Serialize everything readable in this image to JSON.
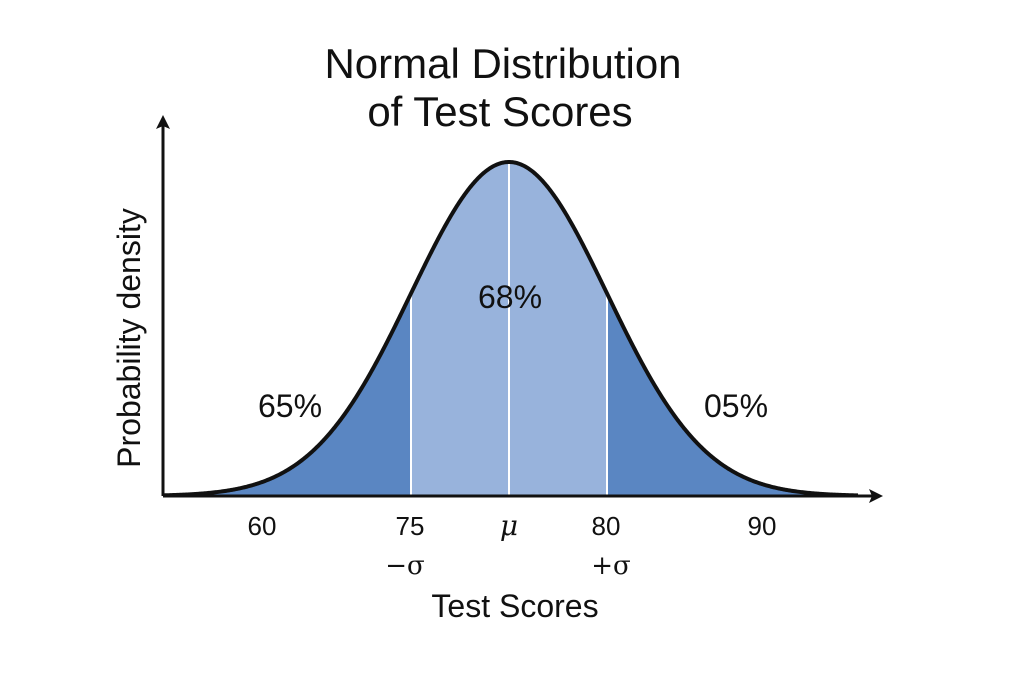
{
  "chart_data": {
    "type": "area",
    "title": [
      "Normal Distribution",
      "of Test Scores"
    ],
    "xlabel": "Test Scores",
    "ylabel": "Probability density",
    "mean_label": "μ",
    "minus_sigma_label": "−σ",
    "plus_sigma_label": "+σ",
    "x_ticks": [
      "60",
      "75",
      "μ",
      "80",
      "90"
    ],
    "region_labels": {
      "left_tail": "65%",
      "center": "68%",
      "right_tail": "05%"
    },
    "colors": {
      "center_fill": "#98b3dc",
      "tail_fill": "#5a86c2",
      "curve": "#111111",
      "divider": "#ffffff"
    },
    "grid": false,
    "legend": "none"
  }
}
